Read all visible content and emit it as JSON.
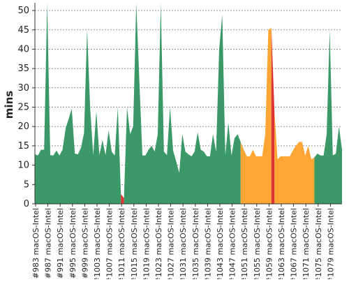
{
  "chart_data": {
    "type": "area",
    "ylabel": "mins",
    "ylim": [
      0,
      52
    ],
    "yticks": [
      0,
      5,
      10,
      15,
      20,
      25,
      30,
      35,
      40,
      45,
      50
    ],
    "grid": true,
    "build_start": 983,
    "build_end": 1081,
    "xtick_labels": [
      "#983 macOS-Intel",
      "#987 macOS-Intel",
      "#991 macOS-Intel",
      "#995 macOS-Intel",
      "#999 macOS-Intel",
      "#1003 macOS-Intel",
      "#1007 macOS-Intel",
      "#1011 macOS-Intel",
      "#1015 macOS-Intel",
      "#1019 macOS-Intel",
      "#1023 macOS-Intel",
      "#1027 macOS-Intel",
      "#1031 macOS-Intel",
      "#1035 macOS-Intel",
      "#1039 macOS-Intel",
      "#1043 macOS-Intel",
      "#1047 macOS-Intel",
      "#1051 macOS-Intel",
      "#1055 macOS-Intel",
      "#1059 macOS-Intel",
      "#1063 macOS-Intel",
      "#1067 macOS-Intel",
      "#1071 macOS-Intel",
      "#1075 macOS-Intel",
      "#1079 macOS-Intel"
    ],
    "values": [
      12.8,
      12.5,
      14.0,
      14.0,
      52.0,
      12.6,
      12.5,
      13.8,
      12.5,
      14.0,
      19.5,
      22.0,
      24.6,
      13.0,
      12.8,
      14.5,
      18.3,
      45.0,
      24.6,
      12.6,
      24.0,
      12.6,
      16.5,
      12.6,
      19.0,
      13.5,
      12.5,
      25.0,
      2.5,
      1.5,
      25.0,
      18.0,
      20.0,
      52.0,
      32.0,
      12.5,
      12.5,
      14.0,
      15.0,
      13.5,
      18.0,
      52.0,
      13.5,
      12.6,
      25.0,
      13.8,
      11.0,
      8.0,
      18.0,
      13.5,
      12.8,
      12.3,
      13.5,
      18.5,
      14.0,
      13.5,
      12.3,
      12.3,
      18.0,
      13.5,
      40.0,
      49.0,
      12.6,
      21.0,
      12.5,
      17.0,
      18.0,
      16.0,
      14.0,
      12.3,
      12.3,
      14.0,
      12.3,
      12.3,
      12.3,
      18.0,
      45.0,
      45.5,
      24.0,
      11.5,
      12.3,
      12.3,
      12.3,
      12.3,
      13.8,
      15.0,
      16.0,
      16.0,
      12.5,
      15.0,
      11.5,
      12.0,
      13.0,
      12.5,
      12.5,
      18.0,
      45.0,
      12.5,
      13.0,
      20.0,
      14.0
    ],
    "status_colors": {
      "success": "#3a9966",
      "unstable": "#ffa533",
      "failed": "#dd3333"
    },
    "status_segments": [
      {
        "status": "success",
        "from": 983,
        "to": 1011
      },
      {
        "status": "failed",
        "from": 1011,
        "to": 1012
      },
      {
        "status": "success",
        "from": 1012,
        "to": 1050
      },
      {
        "status": "unstable",
        "from": 1050,
        "to": 1060
      },
      {
        "status": "failed",
        "from": 1060,
        "to": 1061
      },
      {
        "status": "unstable",
        "from": 1061,
        "to": 1074
      },
      {
        "status": "success",
        "from": 1074,
        "to": 1083
      }
    ]
  }
}
